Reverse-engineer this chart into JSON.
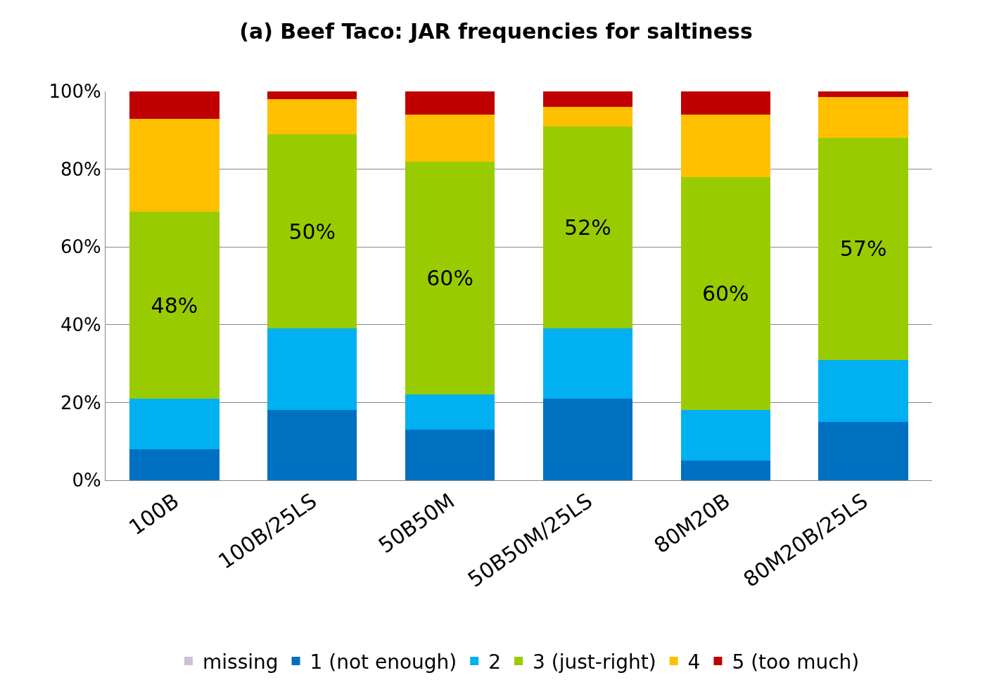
{
  "chart_data": {
    "type": "bar",
    "title": "(a) Beef Taco: JAR frequencies for saltiness",
    "stacked": true,
    "categories": [
      "100B",
      "100B/25LS",
      "50B50M",
      "50B50M/25LS",
      "80M20B",
      "80M20B/25LS"
    ],
    "series": [
      {
        "name": "missing",
        "color": "#ccc0da",
        "values": [
          0,
          0,
          0,
          0,
          0,
          0
        ]
      },
      {
        "name": "1 (not enough)",
        "color": "#0070c0",
        "values": [
          8,
          18,
          13,
          21,
          5,
          15
        ]
      },
      {
        "name": "2",
        "color": "#00b0f0",
        "values": [
          13,
          21,
          9,
          18,
          13,
          16
        ]
      },
      {
        "name": "3 (just-right)",
        "color": "#99cc00",
        "values": [
          48,
          50,
          60,
          52,
          60,
          57
        ],
        "value_labels": [
          "48%",
          "50%",
          "60%",
          "52%",
          "60%",
          "57%"
        ]
      },
      {
        "name": "4",
        "color": "#ffc000",
        "values": [
          24,
          9,
          12,
          5,
          16,
          10.5
        ]
      },
      {
        "name": "5 (too much)",
        "color": "#c00000",
        "values": [
          7,
          2,
          6,
          4,
          6,
          1.5
        ]
      }
    ],
    "ylim": [
      0,
      100
    ],
    "yticks": [
      {
        "value": 0,
        "label": "0%"
      },
      {
        "value": 20,
        "label": "20%"
      },
      {
        "value": 40,
        "label": "40%"
      },
      {
        "value": 60,
        "label": "60%"
      },
      {
        "value": 80,
        "label": "80%"
      },
      {
        "value": 100,
        "label": "100%"
      }
    ],
    "grid": "y",
    "legend": "bottom"
  }
}
